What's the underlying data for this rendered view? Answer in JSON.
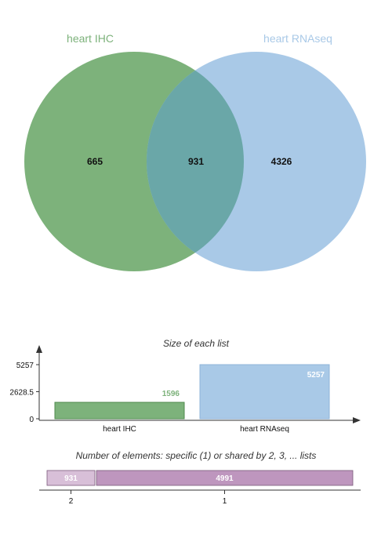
{
  "chart_data": [
    {
      "type": "venn",
      "sets": [
        {
          "name": "heart IHC",
          "color": "#7db27b",
          "label_color": "#7db27b"
        },
        {
          "name": "heart RNAseq",
          "color": "#a9c9e7",
          "label_color": "#a9c9e7"
        }
      ],
      "overlap_color": "#6aa7a8",
      "regions": [
        {
          "sets": [
            "heart IHC"
          ],
          "value": 665
        },
        {
          "sets": [
            "heart IHC",
            "heart RNAseq"
          ],
          "value": 931
        },
        {
          "sets": [
            "heart RNAseq"
          ],
          "value": 4326
        }
      ]
    },
    {
      "type": "bar",
      "title": "Size of each list",
      "categories": [
        "heart IHC",
        "heart RNAseq"
      ],
      "values": [
        1596,
        5257
      ],
      "value_labels": [
        "1596",
        "5257"
      ],
      "colors": [
        "#7db27b",
        "#a9c9e7"
      ],
      "yticks": [
        "5257",
        "2628.5",
        "0"
      ],
      "ytick_values": [
        5257,
        2628.5,
        0
      ],
      "ylim": [
        0,
        5257
      ]
    },
    {
      "type": "bar",
      "orientation": "stacked-horizontal",
      "title": "Number of elements: specific (1) or shared by 2, 3, ... lists",
      "segments": [
        {
          "category": "2",
          "value": 931,
          "label": "931",
          "color": "#d8bfd8"
        },
        {
          "category": "1",
          "value": 4991,
          "label": "4991",
          "color": "#be96be"
        }
      ],
      "categories": [
        "2",
        "1"
      ]
    }
  ]
}
